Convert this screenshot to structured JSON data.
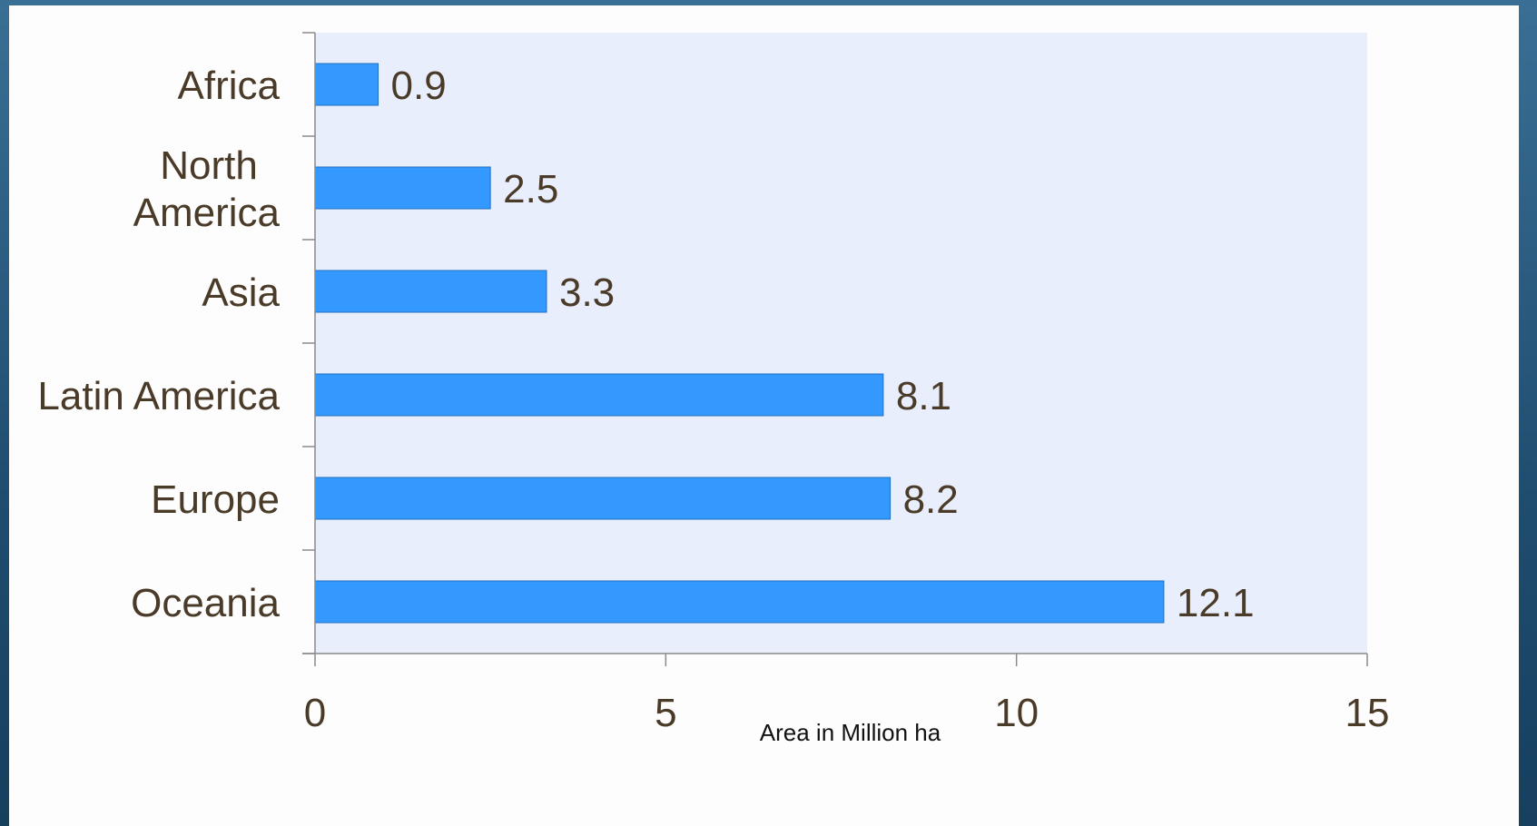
{
  "chart_data": {
    "type": "bar",
    "orientation": "horizontal",
    "categories": [
      "Africa",
      "North America",
      "Asia",
      "Latin America",
      "Europe",
      "Oceania"
    ],
    "category_lines": [
      [
        "Africa"
      ],
      [
        "North",
        "America"
      ],
      [
        "Asia"
      ],
      [
        "Latin America"
      ],
      [
        "Europe"
      ],
      [
        "Oceania"
      ]
    ],
    "values": [
      0.9,
      2.5,
      3.3,
      8.1,
      8.2,
      12.1
    ],
    "value_labels": [
      "0.9",
      "2.5",
      "3.3",
      "8.1",
      "8.2",
      "12.1"
    ],
    "xlabel": "Area in Million ha",
    "ylabel": "",
    "title": "",
    "xlim": [
      0,
      15
    ],
    "xticks": [
      0,
      5,
      10,
      15
    ],
    "xtick_labels": [
      "0",
      "5",
      "10",
      "15"
    ],
    "grid": false,
    "legend": "none"
  },
  "colors": {
    "bar_fill": "#3399ff",
    "bar_stroke": "#1f6fc4",
    "plot_background": "#e8eefc",
    "axis_line": "#8a8a8a",
    "text": "#4a3a28",
    "axis_title_text": "#111111"
  }
}
